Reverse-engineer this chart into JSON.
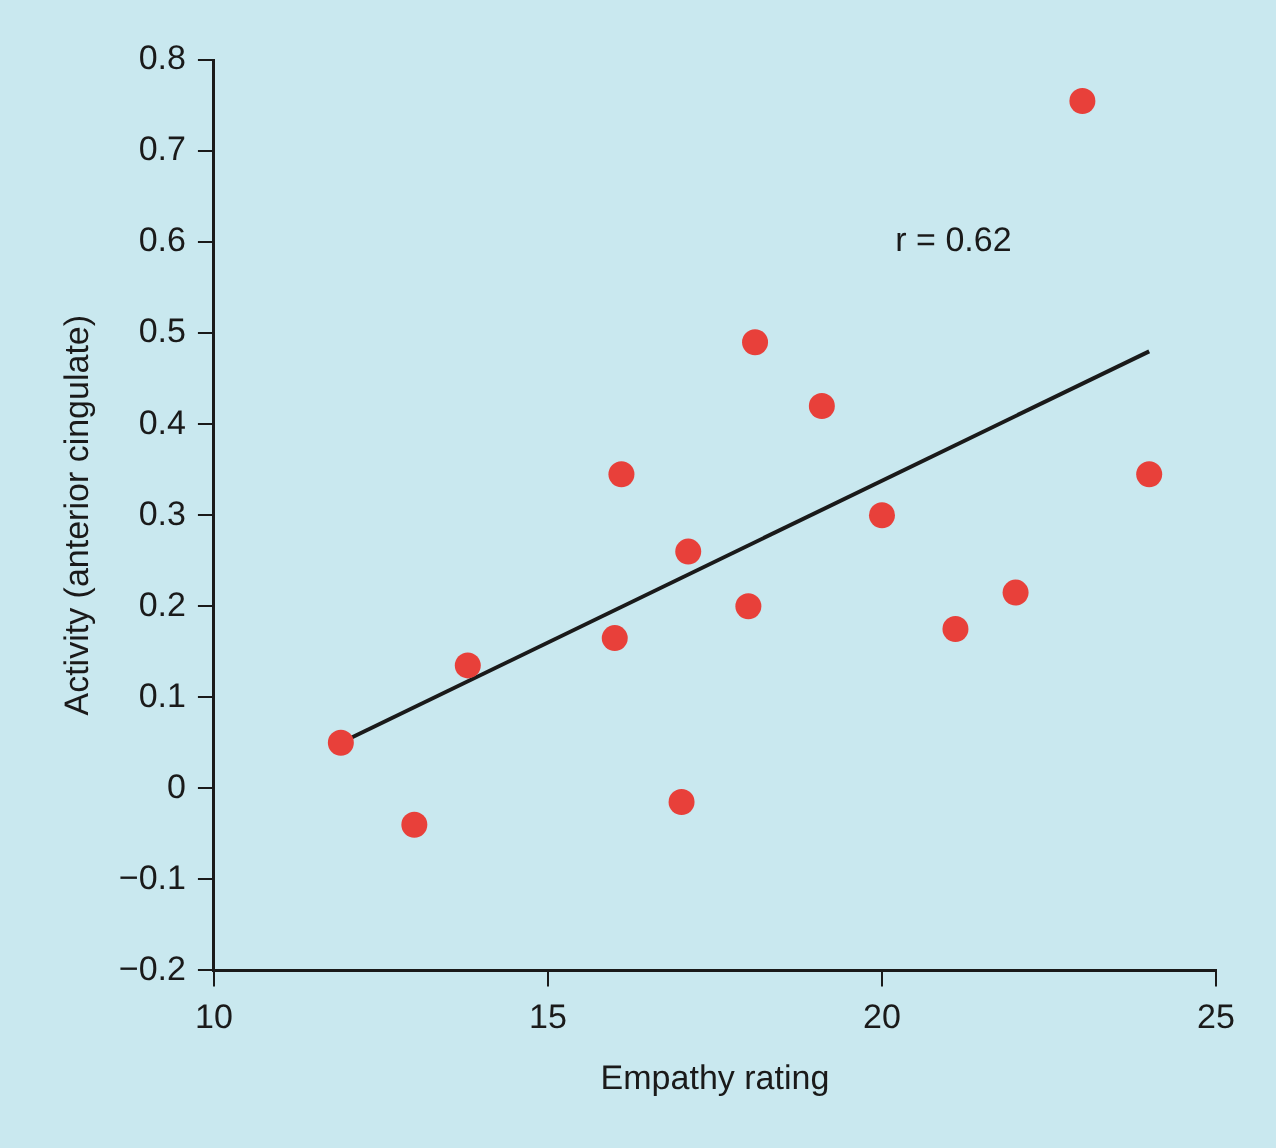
{
  "chart_data": {
    "type": "scatter",
    "xlabel": "Empathy rating",
    "ylabel": "Activity (anterior cingulate)",
    "annotations": [
      "r = 0.62"
    ],
    "xlim": [
      10,
      25
    ],
    "xticks": [
      10,
      15,
      20,
      25
    ],
    "ylim": [
      -0.2,
      0.8
    ],
    "yticks": [
      {
        "value": -0.2,
        "label": "−0.2"
      },
      {
        "value": -0.1,
        "label": "−0.1"
      },
      0,
      0.1,
      0.2,
      0.3,
      0.4,
      0.5,
      0.6,
      0.7,
      0.8
    ],
    "grid": false,
    "legend": false,
    "marker": "circle",
    "series": [
      {
        "color": "#e8403a",
        "x": [
          11.9,
          13.0,
          13.8,
          16.1,
          16.0,
          17.1,
          17.0,
          18.0,
          18.1,
          19.1,
          20.0,
          21.1,
          22.0,
          23.0,
          24.0
        ],
        "values": [
          0.05,
          -0.04,
          0.135,
          0.345,
          0.165,
          0.26,
          -0.015,
          0.2,
          0.49,
          0.42,
          0.3,
          0.175,
          0.215,
          0.755,
          0.345
        ]
      },
      {
        "type": "line",
        "marker": "none",
        "color": "#1a1a1a",
        "x": [
          11.9,
          24.0
        ],
        "values": [
          0.05,
          0.48
        ]
      }
    ]
  }
}
